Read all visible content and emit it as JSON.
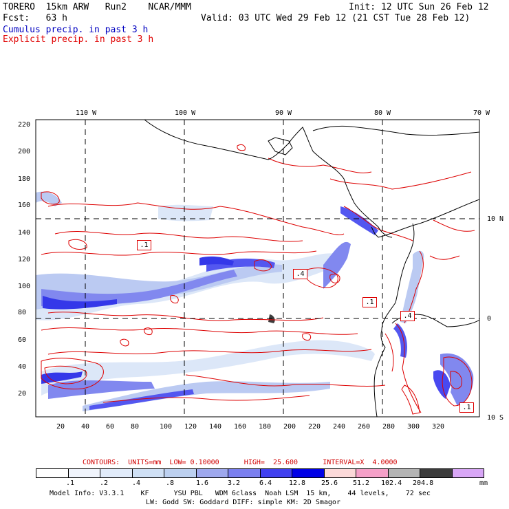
{
  "header": {
    "model": "TORERO  15km ARW   Run2    NCAR/MMM",
    "init": "Init: 12 UTC Sun 26 Feb 12",
    "fcst": "Fcst:   63 h",
    "valid": "Valid: 03 UTC Wed 29 Feb 12 (21 CST Tue 28 Feb 12)",
    "legend_cumulus": "Cumulus precip. in past 3 h",
    "legend_explicit": "Explicit precip. in past 3 h"
  },
  "colors": {
    "cumulus_text": "#0000c0",
    "explicit_text": "#e00000",
    "contour": "#dd0000",
    "coast": "#000000"
  },
  "map": {
    "lon_labels": [
      "110 W",
      "100 W",
      "90 W",
      "80 W",
      "70 W"
    ],
    "lat_labels": [
      "10 N",
      "0",
      "10 S"
    ],
    "y_ticks": [
      "220",
      "200",
      "180",
      "160",
      "140",
      "120",
      "100",
      "80",
      "60",
      "40",
      "20"
    ],
    "x_ticks": [
      "20",
      "40",
      "60",
      "80",
      "100",
      "120",
      "140",
      "160",
      "180",
      "200",
      "220",
      "240",
      "260",
      "280",
      "300",
      "320"
    ],
    "boxed_labels": [
      ".1",
      ".4",
      ".1",
      ".4",
      ".1"
    ]
  },
  "colorbar": {
    "contour_line": "CONTOURS:  UNITS=mm  LOW= 0.10000      HIGH=  25.600      INTERVAL=X  4.0000",
    "labels": [
      ".1",
      ".2",
      ".4",
      ".8",
      "1.6",
      "3.2",
      "6.4",
      "12.8",
      "25.6",
      "51.2",
      "102.4",
      "204.8"
    ],
    "units": "mm",
    "swatches": [
      "#ffffff",
      "#f0f4fc",
      "#e1ebfa",
      "#cfe0f5",
      "#bcd0f0",
      "#9ea8ee",
      "#7a7ff0",
      "#4040f0",
      "#0000e6",
      "#fcd9d9",
      "#f5a0c8",
      "#b4b4b4",
      "#3c3c3c",
      "#d8a6f6"
    ]
  },
  "footer": {
    "line1": "Model Info: V3.3.1    KF      YSU PBL   WDM 6class  Noah LSM  15 km,    44 levels,    72 sec",
    "line2": "LW: Godd SW: Goddard DIFF: simple KM: 2D Smagor"
  }
}
